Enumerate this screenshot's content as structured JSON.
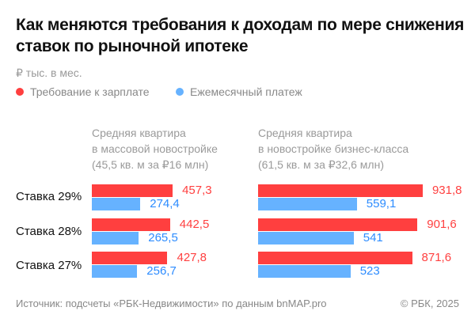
{
  "title": "Как меняются требования к доходам по мере снижения ставок по рыночной ипотеке",
  "unit": "₽ тыс. в мес.",
  "colors": {
    "salary": "#ff3f3f",
    "payment": "#66b2ff",
    "salary_text": "#ff4040",
    "payment_text": "#2d8cff"
  },
  "legend": [
    {
      "label": "Требование к зарплате"
    },
    {
      "label": "Ежемесячный платеж"
    }
  ],
  "source": "Источник: подсчеты «РБК-Недвижимости» по данным bnMAP.pro",
  "copyright": "© РБК, 2025",
  "chart_data": {
    "type": "bar",
    "orientation": "horizontal",
    "categories": [
      "Ставка 29%",
      "Ставка 28%",
      "Ставка 27%"
    ],
    "panels": [
      {
        "title": [
          "Средняя квартира",
          "в массовой новостройке",
          "(45,5 кв. м за ₽16 млн)"
        ],
        "series": [
          {
            "name": "Требование к зарплате",
            "values": [
              457.3,
              442.5,
              427.8
            ],
            "labels": [
              "457,3",
              "442,5",
              "427,8"
            ]
          },
          {
            "name": "Ежемесячный платеж",
            "values": [
              274.4,
              265.5,
              256.7
            ],
            "labels": [
              "274,4",
              "265,5",
              "256,7"
            ]
          }
        ]
      },
      {
        "title": [
          "Средняя квартира",
          "в новостройке бизнес-класса",
          "(61,5 кв. м за ₽32,6 млн)"
        ],
        "series": [
          {
            "name": "Требование к зарплате",
            "values": [
              931.8,
              901.6,
              871.6
            ],
            "labels": [
              "931,8",
              "901,6",
              "871,6"
            ]
          },
          {
            "name": "Ежемесячный платеж",
            "values": [
              559.1,
              541,
              523
            ],
            "labels": [
              "559,1",
              "541",
              "523"
            ]
          }
        ]
      }
    ]
  }
}
